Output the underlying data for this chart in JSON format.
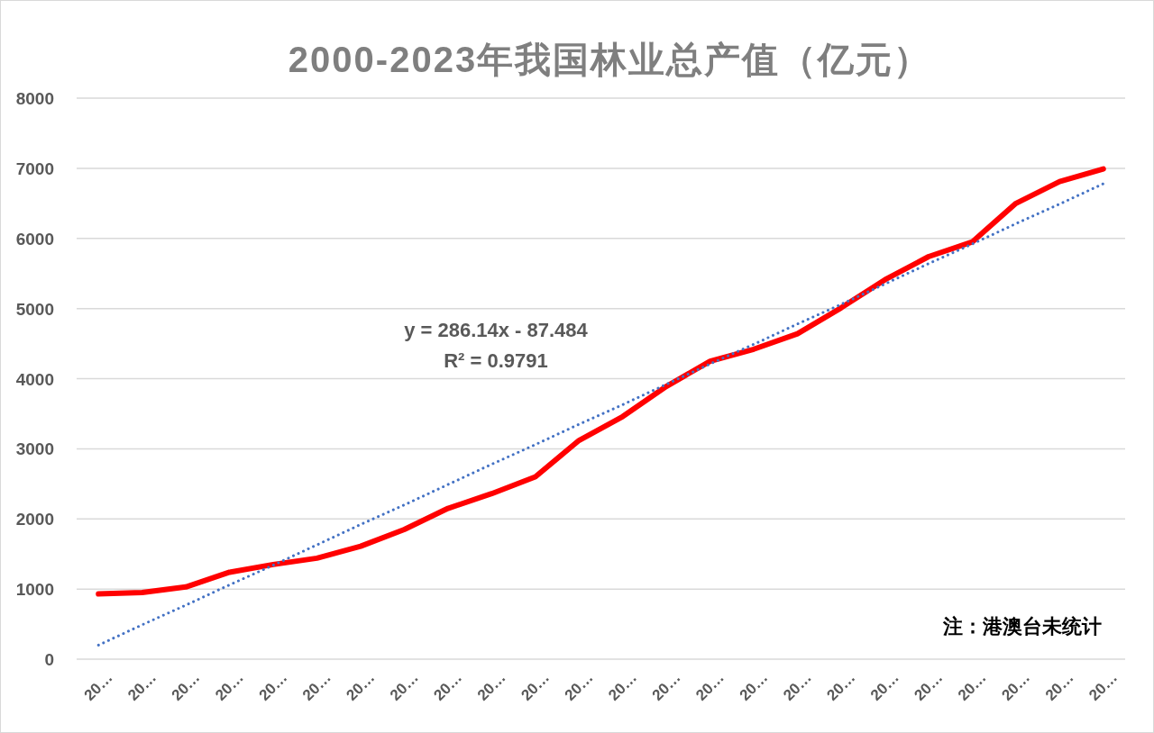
{
  "chart_data": {
    "type": "line",
    "title": "2000-2023年我国林业总产值（亿元）",
    "categories": [
      "20…",
      "20…",
      "20…",
      "20…",
      "20…",
      "20…",
      "20…",
      "20…",
      "20…",
      "20…",
      "20…",
      "20…",
      "20…",
      "20…",
      "20…",
      "20…",
      "20…",
      "20…",
      "20…",
      "20…",
      "20…",
      "20…",
      "20…",
      "20…"
    ],
    "series": [
      {
        "color": "#ff0000",
        "line_style": "solid",
        "values": [
          930,
          950,
          1030,
          1240,
          1350,
          1440,
          1610,
          1850,
          2150,
          2360,
          2600,
          3120,
          3460,
          3890,
          4250,
          4420,
          4640,
          5010,
          5410,
          5740,
          5950,
          6500,
          6810,
          6990
        ]
      },
      {
        "color": "#4472c4",
        "line_style": "dotted",
        "values": [
          200,
          490,
          770,
          1060,
          1340,
          1630,
          1920,
          2200,
          2490,
          2780,
          3060,
          3350,
          3630,
          3920,
          4210,
          4490,
          4780,
          5060,
          5350,
          5640,
          5920,
          6210,
          6490,
          6780
        ]
      }
    ],
    "ylim": [
      0,
      8000
    ],
    "yticks": [
      0,
      1000,
      2000,
      3000,
      4000,
      5000,
      6000,
      7000,
      8000
    ],
    "grid": "y",
    "marker": "none",
    "annotations": [
      "y = 286.14x - 87.484",
      "R² = 0.9791",
      "注：港澳台未统计"
    ]
  }
}
